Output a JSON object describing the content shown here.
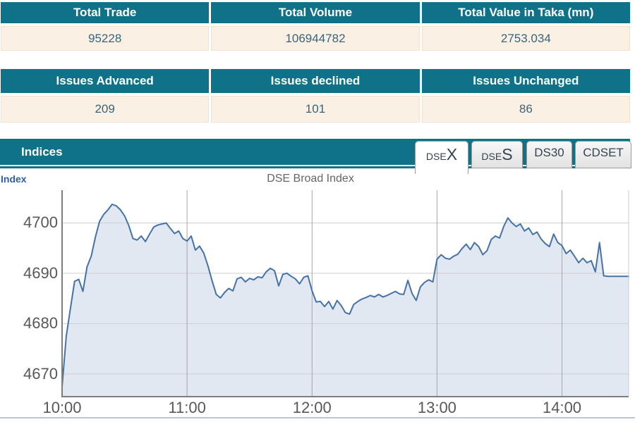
{
  "colors": {
    "teal_header": "#0f7288",
    "cream_row": "#faf0e3",
    "header_text": "#ffffff",
    "value_text": "#3a6478",
    "line": "#4572a7",
    "fill": "rgba(69,114,167,0.16)",
    "axis_label_blue": "#2e5fa5",
    "tab_text": "#33454e",
    "bottom_border": "#b5c8da",
    "h_grid": "#cfcfcf",
    "v_grid": "#a3a6ab",
    "axis_line": "#7d7d7d"
  },
  "summary_tables": [
    {
      "headers": [
        "Total Trade",
        "Total Volume",
        "Total Value in Taka (mn)"
      ],
      "values": [
        "95228",
        "106944782",
        "2753.034"
      ]
    },
    {
      "headers": [
        "Issues Advanced",
        "Issues declined",
        "Issues Unchanged"
      ],
      "values": [
        "209",
        "101",
        "86"
      ]
    }
  ],
  "indices_panel": {
    "title": "Indices",
    "axis_label": "Index",
    "chart_title": "DSE Broad Index",
    "tabs": [
      {
        "label": "DSEX",
        "small": "DSE",
        "big": "X",
        "active": true
      },
      {
        "label": "DSES",
        "small": "DSE",
        "big": "S",
        "active": false
      },
      {
        "label": "DS30",
        "small": "DS30",
        "big": "",
        "active": false
      },
      {
        "label": "CDSET",
        "small": "CDSET",
        "big": "",
        "active": false
      }
    ]
  },
  "chart_data": {
    "type": "area",
    "title": "DSE Broad Index",
    "series_name": "DSEX",
    "x_start": "10:00",
    "x_end": "14:32",
    "x_interval_minutes": 2,
    "x_ticks": [
      "10:00",
      "11:00",
      "12:00",
      "13:00",
      "14:00"
    ],
    "x_tick_minutes": [
      0,
      60,
      120,
      180,
      240
    ],
    "y_ticks": [
      4700,
      4690,
      4680,
      4670
    ],
    "ylim": [
      4665.5,
      4706.5
    ],
    "xlim_minutes": [
      0,
      272
    ],
    "grid": true,
    "legend": false,
    "values": [
      4667.5,
      4677.5,
      4683.0,
      4688.4,
      4688.8,
      4686.4,
      4691.3,
      4693.4,
      4697.2,
      4700.3,
      4701.7,
      4702.6,
      4703.7,
      4703.4,
      4702.6,
      4701.4,
      4699.5,
      4696.9,
      4696.6,
      4697.4,
      4696.3,
      4697.8,
      4699.2,
      4699.6,
      4699.8,
      4700.0,
      4698.9,
      4697.9,
      4698.4,
      4696.9,
      4696.4,
      4697.4,
      4694.6,
      4695.4,
      4694.0,
      4691.5,
      4688.5,
      4685.8,
      4685.1,
      4686.2,
      4687.0,
      4686.5,
      4688.9,
      4689.2,
      4688.3,
      4689.0,
      4688.7,
      4689.3,
      4689.1,
      4690.3,
      4691.0,
      4690.5,
      4687.5,
      4689.8,
      4690.0,
      4689.4,
      4688.9,
      4687.9,
      4689.2,
      4689.5,
      4686.5,
      4684.3,
      4684.4,
      4683.4,
      4684.4,
      4682.9,
      4684.6,
      4683.6,
      4682.2,
      4681.9,
      4683.8,
      4684.4,
      4684.9,
      4685.2,
      4685.6,
      4685.3,
      4685.8,
      4685.3,
      4685.6,
      4686.0,
      4686.4,
      4685.9,
      4685.8,
      4688.6,
      4686.0,
      4684.6,
      4687.3,
      4688.2,
      4688.7,
      4688.3,
      4692.8,
      4693.7,
      4693.0,
      4692.8,
      4693.4,
      4693.8,
      4694.9,
      4695.8,
      4694.7,
      4696.1,
      4695.3,
      4693.7,
      4694.5,
      4696.7,
      4697.4,
      4697.0,
      4699.3,
      4701.0,
      4700.0,
      4699.3,
      4699.8,
      4698.4,
      4699.0,
      4697.7,
      4698.2,
      4696.8,
      4695.9,
      4695.3,
      4697.8,
      4696.1,
      4695.5,
      4693.9,
      4694.6,
      4693.4,
      4692.1,
      4693.0,
      4692.1,
      4692.5,
      4690.3,
      4696.1,
      4689.5,
      4689.4,
      4689.4,
      4689.4,
      4689.4,
      4689.4,
      4689.4
    ]
  }
}
